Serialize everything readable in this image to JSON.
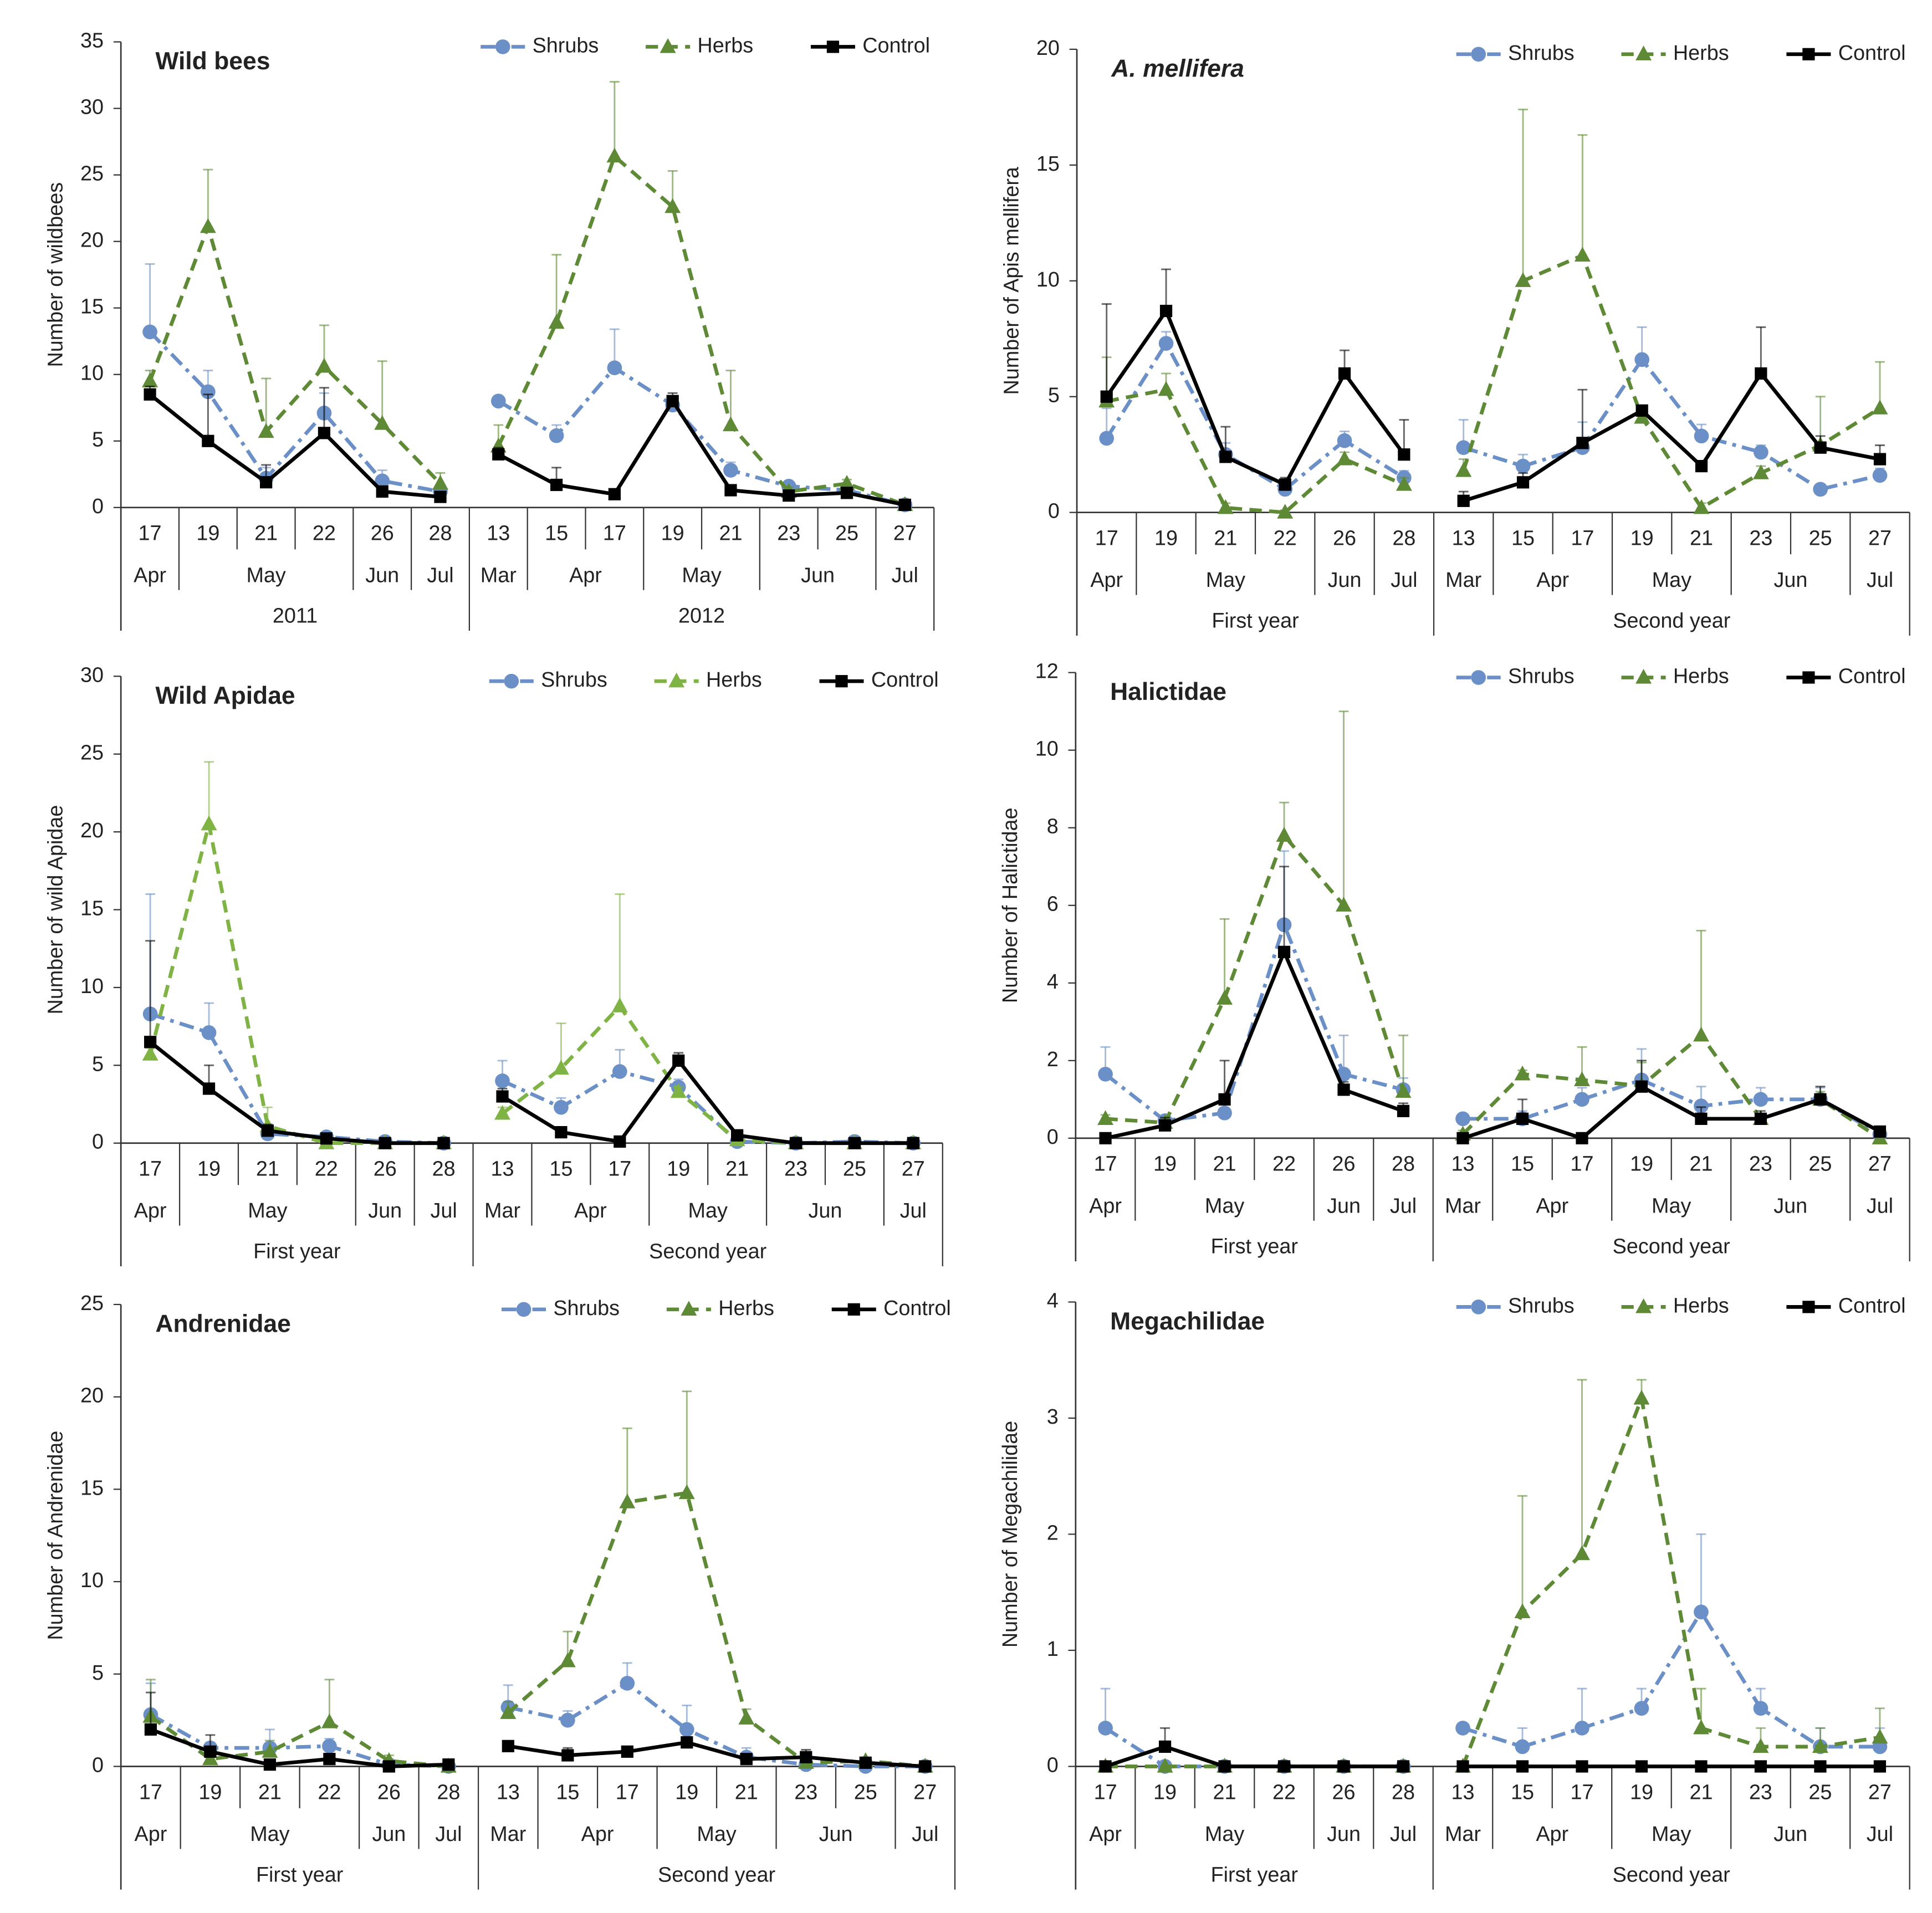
{
  "chart_data": [
    {
      "type": "line",
      "title": "Wild bees",
      "y_label": "Number of wildbees",
      "legend": "top right",
      "categories": [
        "17",
        "19",
        "21",
        "22",
        "26",
        "28",
        "13",
        "15",
        "17",
        "19",
        "21",
        "23",
        "25",
        "27"
      ],
      "months": [
        "Apr",
        "May",
        "May",
        "May",
        "Jun",
        "Jul",
        "Mar",
        "Apr",
        "Apr",
        "May",
        "May",
        "Jun",
        "Jun",
        "Jul"
      ],
      "years": [
        "2011",
        "2011",
        "2011",
        "2011",
        "2011",
        "2011",
        "2012",
        "2012",
        "2012",
        "2012",
        "2012",
        "2012",
        "2012",
        "2012"
      ],
      "ylim": [
        0,
        35
      ],
      "yticks": [
        0,
        5,
        10,
        15,
        20,
        25,
        30,
        35
      ],
      "series": [
        {
          "name": "Shrubs",
          "color": "#6b8fc7",
          "dash": "dashdot",
          "marker": "circle",
          "values": [
            13.2,
            8.7,
            2.2,
            7.1,
            2.0,
            1.2,
            8.0,
            5.4,
            10.5,
            7.7,
            2.8,
            1.6,
            1.3,
            0.2
          ],
          "errors": [
            5.1,
            1.6,
            0.8,
            1.5,
            0.8,
            0.3,
            0.3,
            0.8,
            2.9,
            0.6,
            0.6,
            0.3,
            0.3,
            0.1
          ]
        },
        {
          "name": "Herbs",
          "color": "#5e8a36",
          "dash": "dashed",
          "marker": "triangle",
          "values": [
            9.5,
            21.1,
            5.7,
            10.6,
            6.3,
            1.8,
            4.6,
            13.9,
            26.4,
            22.6,
            6.2,
            1.2,
            1.8,
            0.2
          ],
          "errors": [
            0.8,
            4.3,
            4.0,
            3.1,
            4.7,
            0.8,
            1.6,
            5.1,
            5.6,
            2.7,
            4.1,
            0.3,
            0.3,
            0.1
          ]
        },
        {
          "name": "Control",
          "color": "#000000",
          "dash": "solid",
          "marker": "square",
          "values": [
            8.5,
            5.0,
            1.9,
            5.6,
            1.2,
            0.8,
            4.0,
            1.7,
            1.0,
            8.0,
            1.3,
            0.9,
            1.1,
            0.2
          ],
          "errors": [
            0.6,
            3.5,
            1.3,
            3.4,
            0.4,
            0.3,
            0.5,
            1.3,
            0.2,
            0.6,
            0.4,
            0.3,
            0.3,
            0.1
          ]
        }
      ]
    },
    {
      "type": "line",
      "title": "A. mellifera",
      "title_italic": true,
      "y_label": "Number of Apis mellifera",
      "legend": "top right",
      "categories": [
        "17",
        "19",
        "21",
        "22",
        "26",
        "28",
        "13",
        "15",
        "17",
        "19",
        "21",
        "23",
        "25",
        "27"
      ],
      "months": [
        "Apr",
        "May",
        "May",
        "May",
        "Jun",
        "Jul",
        "Mar",
        "Apr",
        "Apr",
        "May",
        "May",
        "Jun",
        "Jun",
        "Jul"
      ],
      "years": [
        "First year",
        "First year",
        "First year",
        "First year",
        "First year",
        "First year",
        "Second year",
        "Second year",
        "Second year",
        "Second year",
        "Second year",
        "Second year",
        "Second year",
        "Second year"
      ],
      "ylim": [
        0,
        20
      ],
      "yticks": [
        0,
        5,
        10,
        15,
        20
      ],
      "series": [
        {
          "name": "Shrubs",
          "color": "#6b8fc7",
          "dash": "dashdot",
          "marker": "circle",
          "values": [
            3.2,
            7.3,
            2.5,
            1.0,
            3.1,
            1.5,
            2.8,
            2.0,
            2.8,
            6.6,
            3.3,
            2.6,
            1.0,
            1.6
          ],
          "errors": [
            1.3,
            0.5,
            0.5,
            0.3,
            0.4,
            0.3,
            1.2,
            0.5,
            1.1,
            1.4,
            0.5,
            0.3,
            0.2,
            0.3
          ]
        },
        {
          "name": "Herbs",
          "color": "#5e8a36",
          "dash": "dashed",
          "marker": "triangle",
          "values": [
            4.8,
            5.3,
            0.2,
            0.0,
            2.3,
            1.2,
            1.8,
            10.0,
            11.1,
            4.1,
            0.2,
            1.7,
            2.9,
            4.5
          ],
          "errors": [
            1.9,
            0.7,
            0.2,
            0.1,
            0.3,
            0.3,
            0.5,
            7.4,
            5.2,
            0.4,
            0.2,
            0.3,
            2.1,
            2.0
          ]
        },
        {
          "name": "Control",
          "color": "#000000",
          "dash": "solid",
          "marker": "square",
          "values": [
            5.0,
            8.7,
            2.4,
            1.2,
            6.0,
            2.5,
            0.5,
            1.3,
            3.0,
            4.4,
            2.0,
            6.0,
            2.8,
            2.3
          ],
          "errors": [
            4.0,
            1.8,
            1.3,
            0.3,
            1.0,
            1.5,
            0.4,
            0.4,
            2.3,
            0.2,
            0.2,
            2.0,
            0.5,
            0.6
          ]
        }
      ]
    },
    {
      "type": "line",
      "title": "Wild Apidae",
      "y_label": "Number of wild Apidae",
      "legend": "top right",
      "categories": [
        "17",
        "19",
        "21",
        "22",
        "26",
        "28",
        "13",
        "15",
        "17",
        "19",
        "21",
        "23",
        "25",
        "27"
      ],
      "months": [
        "Apr",
        "May",
        "May",
        "May",
        "Jun",
        "Jul",
        "Mar",
        "Apr",
        "Apr",
        "May",
        "May",
        "Jun",
        "Jun",
        "Jul"
      ],
      "years": [
        "First year",
        "First year",
        "First year",
        "First year",
        "First year",
        "First year",
        "Second year",
        "Second year",
        "Second year",
        "Second year",
        "Second year",
        "Second year",
        "Second year",
        "Second year"
      ],
      "ylim": [
        0,
        30
      ],
      "yticks": [
        0,
        5,
        10,
        15,
        20,
        25,
        30
      ],
      "series": [
        {
          "name": "Shrubs",
          "color": "#6b8fc7",
          "dash": "dashdot",
          "marker": "circle",
          "values": [
            8.3,
            7.1,
            0.6,
            0.4,
            0.1,
            0.0,
            4.0,
            2.3,
            4.6,
            3.6,
            0.1,
            0.0,
            0.1,
            0.0
          ],
          "errors": [
            7.7,
            1.9,
            0.3,
            0.2,
            0.1,
            0.0,
            1.3,
            0.6,
            1.4,
            0.5,
            0.1,
            0.0,
            0.0,
            0.0
          ]
        },
        {
          "name": "Herbs",
          "color": "#7fb344",
          "dash": "dashed",
          "marker": "triangle",
          "values": [
            5.7,
            20.5,
            1.1,
            0.0,
            0.0,
            0.0,
            1.9,
            4.8,
            8.8,
            3.3,
            0.2,
            0.0,
            0.0,
            0.0
          ],
          "errors": [
            0.4,
            4.0,
            1.2,
            0.1,
            0.0,
            0.0,
            0.4,
            2.9,
            7.2,
            0.3,
            0.1,
            0.0,
            0.0,
            0.0
          ]
        },
        {
          "name": "Control",
          "color": "#000000",
          "dash": "solid",
          "marker": "square",
          "values": [
            6.5,
            3.5,
            0.8,
            0.3,
            0.0,
            0.0,
            3.0,
            0.7,
            0.1,
            5.3,
            0.5,
            0.0,
            0.0,
            0.0
          ],
          "errors": [
            6.5,
            1.5,
            0.4,
            0.1,
            0.0,
            0.0,
            0.5,
            0.2,
            0.1,
            0.5,
            0.2,
            0.0,
            0.0,
            0.0
          ]
        }
      ]
    },
    {
      "type": "line",
      "title": "Halictidae",
      "y_label": "Number of Halictidae",
      "legend": "top right",
      "categories": [
        "17",
        "19",
        "21",
        "22",
        "26",
        "28",
        "13",
        "15",
        "17",
        "19",
        "21",
        "23",
        "25",
        "27"
      ],
      "months": [
        "Apr",
        "May",
        "May",
        "May",
        "Jun",
        "Jul",
        "Mar",
        "Apr",
        "Apr",
        "May",
        "May",
        "Jun",
        "Jun",
        "Jul"
      ],
      "years": [
        "First year",
        "First year",
        "First year",
        "First year",
        "First year",
        "First year",
        "Second year",
        "Second year",
        "Second year",
        "Second year",
        "Second year",
        "Second year",
        "Second year",
        "Second year"
      ],
      "ylim": [
        0,
        12
      ],
      "yticks": [
        0,
        2,
        4,
        6,
        8,
        10,
        12
      ],
      "series": [
        {
          "name": "Shrubs",
          "color": "#6b8fc7",
          "dash": "dashdot",
          "marker": "circle",
          "values": [
            1.65,
            0.45,
            0.65,
            5.5,
            1.65,
            1.25,
            0.5,
            0.5,
            1.0,
            1.5,
            0.83,
            1.0,
            1.0,
            0.1
          ],
          "errors": [
            0.7,
            0.1,
            0.3,
            1.9,
            1.0,
            0.3,
            0.1,
            0.2,
            0.3,
            0.8,
            0.5,
            0.3,
            0.3,
            0.0
          ]
        },
        {
          "name": "Herbs",
          "color": "#5e8a36",
          "dash": "dashed",
          "marker": "triangle",
          "values": [
            0.5,
            0.4,
            3.6,
            7.8,
            6.0,
            1.2,
            0.1,
            1.65,
            1.5,
            1.35,
            2.65,
            0.5,
            1.0,
            0.0
          ],
          "errors": [
            0.1,
            0.1,
            2.05,
            0.85,
            5.0,
            1.45,
            0.1,
            0.1,
            0.85,
            0.6,
            2.7,
            0.1,
            0.2,
            0.0
          ]
        },
        {
          "name": "Control",
          "color": "#000000",
          "dash": "solid",
          "marker": "square",
          "values": [
            0.0,
            0.33,
            1.0,
            4.8,
            1.25,
            0.7,
            0.0,
            0.5,
            0.0,
            1.33,
            0.5,
            0.5,
            1.0,
            0.17
          ],
          "errors": [
            0.0,
            0.2,
            1.0,
            2.2,
            0.2,
            0.2,
            0.0,
            0.5,
            0.0,
            0.67,
            0.3,
            0.2,
            0.33,
            0.1
          ]
        }
      ]
    },
    {
      "type": "line",
      "title": "Andrenidae",
      "y_label": "Number of Andrenidae",
      "legend": "top right",
      "categories": [
        "17",
        "19",
        "21",
        "22",
        "26",
        "28",
        "13",
        "15",
        "17",
        "19",
        "21",
        "23",
        "25",
        "27"
      ],
      "months": [
        "Apr",
        "May",
        "May",
        "May",
        "Jun",
        "Jul",
        "Mar",
        "Apr",
        "Apr",
        "May",
        "May",
        "Jun",
        "Jun",
        "Jul"
      ],
      "years": [
        "First year",
        "First year",
        "First year",
        "First year",
        "First year",
        "First year",
        "Second year",
        "Second year",
        "Second year",
        "Second year",
        "Second year",
        "Second year",
        "Second year",
        "Second year"
      ],
      "ylim": [
        0,
        25
      ],
      "yticks": [
        0,
        5,
        10,
        15,
        20,
        25
      ],
      "series": [
        {
          "name": "Shrubs",
          "color": "#6b8fc7",
          "dash": "dashdot",
          "marker": "circle",
          "values": [
            2.8,
            1.0,
            1.0,
            1.1,
            0.1,
            0.0,
            3.2,
            2.5,
            4.5,
            2.0,
            0.5,
            0.1,
            0.0,
            0.0
          ],
          "errors": [
            1.7,
            0.3,
            1.0,
            0.4,
            0.1,
            0.0,
            1.2,
            0.5,
            1.1,
            1.3,
            0.5,
            0.1,
            0.0,
            0.0
          ]
        },
        {
          "name": "Herbs",
          "color": "#5e8a36",
          "dash": "dashed",
          "marker": "triangle",
          "values": [
            2.7,
            0.4,
            0.8,
            2.4,
            0.3,
            0.0,
            2.9,
            5.7,
            14.3,
            14.8,
            2.6,
            0.2,
            0.3,
            0.0
          ],
          "errors": [
            2.0,
            0.2,
            0.6,
            2.3,
            0.3,
            0.0,
            0.6,
            1.6,
            4.0,
            5.5,
            0.5,
            0.1,
            0.1,
            0.0
          ]
        },
        {
          "name": "Control",
          "color": "#000000",
          "dash": "solid",
          "marker": "square",
          "values": [
            2.0,
            0.8,
            0.1,
            0.4,
            0.0,
            0.1,
            1.1,
            0.6,
            0.8,
            1.3,
            0.4,
            0.5,
            0.2,
            0.0
          ],
          "errors": [
            2.0,
            0.9,
            0.1,
            0.2,
            0.0,
            0.1,
            0.2,
            0.4,
            0.1,
            0.3,
            0.2,
            0.4,
            0.2,
            0.0
          ]
        }
      ]
    },
    {
      "type": "line",
      "title": "Megachilidae",
      "y_label": "Number of Megachilidae",
      "legend": "top right",
      "categories": [
        "17",
        "19",
        "21",
        "22",
        "26",
        "28",
        "13",
        "15",
        "17",
        "19",
        "21",
        "23",
        "25",
        "27"
      ],
      "months": [
        "Apr",
        "May",
        "May",
        "May",
        "Jun",
        "Jul",
        "Mar",
        "Apr",
        "Apr",
        "May",
        "May",
        "Jun",
        "Jun",
        "Jul"
      ],
      "years": [
        "First year",
        "First year",
        "First year",
        "First year",
        "First year",
        "First year",
        "Second year",
        "Second year",
        "Second year",
        "Second year",
        "Second year",
        "Second year",
        "Second year",
        "Second year"
      ],
      "ylim": [
        0,
        4
      ],
      "yticks": [
        0,
        1,
        2,
        3,
        4
      ],
      "series": [
        {
          "name": "Shrubs",
          "color": "#6b8fc7",
          "dash": "dashdot",
          "marker": "circle",
          "values": [
            0.33,
            0.0,
            0.0,
            0.0,
            0.0,
            0.0,
            0.33,
            0.17,
            0.33,
            0.5,
            1.33,
            0.5,
            0.17,
            0.17
          ],
          "errors": [
            0.34,
            0.0,
            0.0,
            0.0,
            0.0,
            0.0,
            0.0,
            0.16,
            0.34,
            0.17,
            0.67,
            0.17,
            0.16,
            0.16
          ]
        },
        {
          "name": "Herbs",
          "color": "#5e8a36",
          "dash": "dashed",
          "marker": "triangle",
          "values": [
            0.0,
            0.0,
            0.0,
            0.0,
            0.0,
            0.0,
            0.0,
            1.33,
            1.83,
            3.17,
            0.33,
            0.17,
            0.17,
            0.25
          ],
          "errors": [
            0.0,
            0.0,
            0.0,
            0.0,
            0.0,
            0.0,
            0.0,
            1.0,
            1.5,
            0.16,
            0.34,
            0.16,
            0.16,
            0.25
          ]
        },
        {
          "name": "Control",
          "color": "#000000",
          "dash": "solid",
          "marker": "square",
          "values": [
            0.0,
            0.17,
            0.0,
            0.0,
            0.0,
            0.0,
            0.0,
            0.0,
            0.0,
            0.0,
            0.0,
            0.0,
            0.0,
            0.0
          ],
          "errors": [
            0.0,
            0.16,
            0.0,
            0.0,
            0.0,
            0.0,
            0.0,
            0.0,
            0.0,
            0.0,
            0.0,
            0.0,
            0.0,
            0.0
          ]
        }
      ]
    }
  ]
}
